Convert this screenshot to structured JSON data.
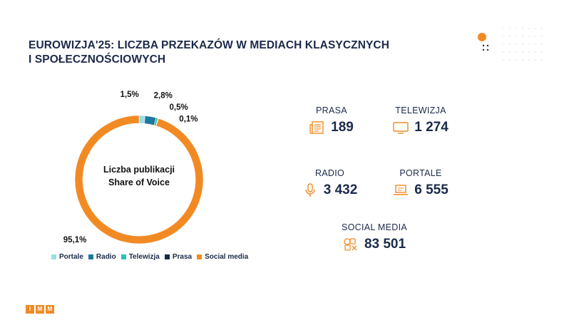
{
  "title": {
    "line1": "EUROWIZJA'25: LICZBA PRZEKAZÓW W MEDIACH KLASYCZNYCH",
    "line2": "I SPOŁECZNOŚCIOWYCH"
  },
  "chart_data": {
    "type": "pie",
    "variant": "donut",
    "center_label_line1": "Liczba publikacji",
    "center_label_line2": "Share of Voice",
    "series": [
      {
        "name": "Portale",
        "value": 1.5,
        "label": "1,5%",
        "color": "#9adfe3"
      },
      {
        "name": "Radio",
        "value": 2.8,
        "label": "2,8%",
        "color": "#1f78a0"
      },
      {
        "name": "Telewizja",
        "value": 0.5,
        "label": "0,5%",
        "color": "#27c4b4"
      },
      {
        "name": "Prasa",
        "value": 0.1,
        "label": "0,1%",
        "color": "#1b2a4a"
      },
      {
        "name": "Social media",
        "value": 95.1,
        "label": "95,1%",
        "color": "#f28a24"
      }
    ],
    "legend_position": "bottom"
  },
  "stats": {
    "prasa": {
      "label": "PRASA",
      "value": "189",
      "icon": "newspaper-icon"
    },
    "telewizja": {
      "label": "TELEWIZJA",
      "value": "1 274",
      "icon": "tv-icon"
    },
    "radio": {
      "label": "RADIO",
      "value": "3 432",
      "icon": "microphone-icon"
    },
    "portale": {
      "label": "PORTALE",
      "value": "6 555",
      "icon": "laptop-icon"
    },
    "social": {
      "label": "SOCIAL MEDIA",
      "value": "83 501",
      "icon": "social-media-icon"
    }
  },
  "logo": {
    "letters": [
      "I",
      "M",
      "M"
    ],
    "color": "#f28a24"
  },
  "colors": {
    "accent": "#f28a24",
    "title": "#1b2a4a"
  }
}
